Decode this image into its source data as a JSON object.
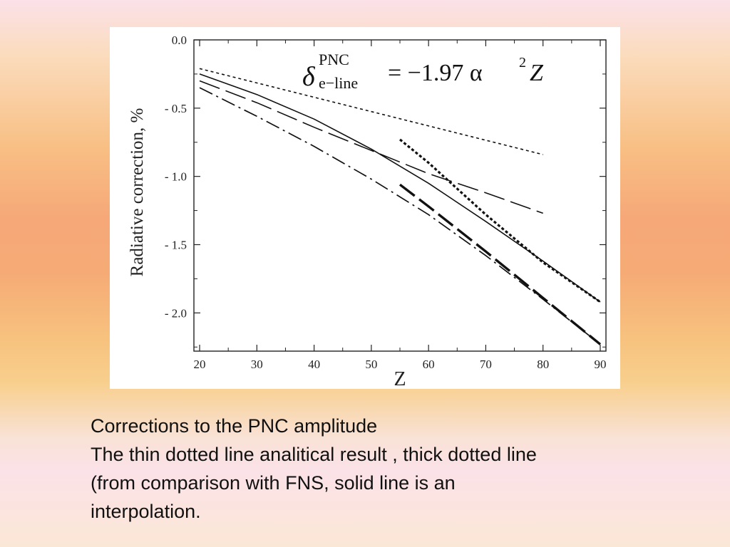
{
  "chart_data": {
    "type": "line",
    "xlabel": "Z",
    "ylabel": "Radiative correction, %",
    "xlim": [
      19,
      91
    ],
    "ylim": [
      -2.28,
      0.0
    ],
    "xticks": [
      "20",
      "30",
      "40",
      "50",
      "60",
      "70",
      "80",
      "90"
    ],
    "yticks": [
      "0.0",
      "- 0.5",
      "- 1.0",
      "- 1.5",
      "- 2.0"
    ],
    "ytick_values": [
      0.0,
      -0.5,
      -1.0,
      -1.5,
      -2.0
    ],
    "xtick_values": [
      20,
      30,
      40,
      50,
      60,
      70,
      80,
      90
    ],
    "annotation": {
      "delta": "δ",
      "superscript": "PNC",
      "subscript": "e−line",
      "rhs": "= −1.97 α",
      "power": "2",
      "variable": "Z"
    },
    "series": [
      {
        "style": "thin-dotted",
        "x": [
          20,
          80
        ],
        "y": [
          -0.21,
          -0.84
        ]
      },
      {
        "style": "solid",
        "x": [
          20,
          30,
          40,
          50,
          60,
          70,
          80,
          90
        ],
        "y": [
          -0.25,
          -0.4,
          -0.58,
          -0.8,
          -1.05,
          -1.33,
          -1.62,
          -1.92
        ]
      },
      {
        "style": "long-dash",
        "x": [
          20,
          30,
          40,
          50,
          60,
          70,
          80
        ],
        "y": [
          -0.3,
          -0.46,
          -0.64,
          -0.81,
          -0.98,
          -1.12,
          -1.27
        ]
      },
      {
        "style": "dash-dot",
        "x": [
          20,
          30,
          40,
          50,
          60,
          70,
          80,
          90
        ],
        "y": [
          -0.35,
          -0.56,
          -0.78,
          -1.02,
          -1.28,
          -1.58,
          -1.9,
          -2.23
        ]
      },
      {
        "style": "thick-dotted",
        "x": [
          55,
          60,
          70,
          80,
          90
        ],
        "y": [
          -0.73,
          -0.9,
          -1.28,
          -1.63,
          -1.92
        ]
      },
      {
        "style": "thick-dash",
        "x": [
          55,
          60,
          70,
          80,
          90
        ],
        "y": [
          -1.06,
          -1.22,
          -1.55,
          -1.89,
          -2.23
        ]
      }
    ]
  },
  "caption": {
    "line1": "Corrections to the PNC amplitude",
    "line2": "The thin dotted line analitical result , thick dotted line",
    "line3": "(from comparison with FNS, solid line is an",
    "line4": "interpolation."
  }
}
